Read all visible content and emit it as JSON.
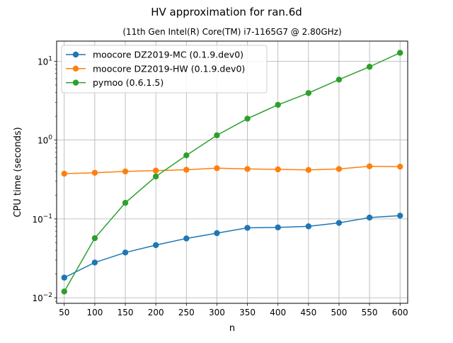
{
  "chart_data": {
    "type": "line",
    "title": "HV approximation for ran.6d",
    "subtitle": "(11th Gen Intel(R) Core(TM) i7-1165G7 @ 2.80GHz)",
    "xlabel": "n",
    "ylabel": "CPU time (seconds)",
    "yscale": "log",
    "xlim": [
      37.5,
      612.5
    ],
    "ylim": [
      0.0085,
      18
    ],
    "grid": true,
    "legend_position": "upper-left",
    "x": [
      50,
      100,
      150,
      200,
      250,
      300,
      350,
      400,
      450,
      500,
      550,
      600
    ],
    "x_tick_labels": [
      "50",
      "100",
      "150",
      "200",
      "250",
      "300",
      "350",
      "400",
      "450",
      "500",
      "550",
      "600"
    ],
    "y_ticks": [
      0.01,
      0.1,
      1,
      10
    ],
    "y_tick_labels": [
      {
        "base": "10",
        "exp": "−2"
      },
      {
        "base": "10",
        "exp": "−1"
      },
      {
        "base": "10",
        "exp": "0"
      },
      {
        "base": "10",
        "exp": "1"
      }
    ],
    "series": [
      {
        "name": "moocore DZ2019-MC (0.1.9.dev0)",
        "color": "#1f77b4",
        "values": [
          0.018,
          0.028,
          0.0375,
          0.0465,
          0.0565,
          0.066,
          0.077,
          0.078,
          0.0805,
          0.089,
          0.104,
          0.11
        ]
      },
      {
        "name": "moocore DZ2019-HW (0.1.9.dev0)",
        "color": "#ff7f0e",
        "values": [
          0.375,
          0.385,
          0.4,
          0.41,
          0.42,
          0.44,
          0.43,
          0.425,
          0.418,
          0.43,
          0.465,
          0.46
        ]
      },
      {
        "name": "pymoo (0.6.1.5)",
        "color": "#2ca02c",
        "values": [
          0.012,
          0.057,
          0.16,
          0.345,
          0.64,
          1.15,
          1.87,
          2.8,
          3.95,
          5.85,
          8.5,
          12.8
        ]
      }
    ]
  }
}
